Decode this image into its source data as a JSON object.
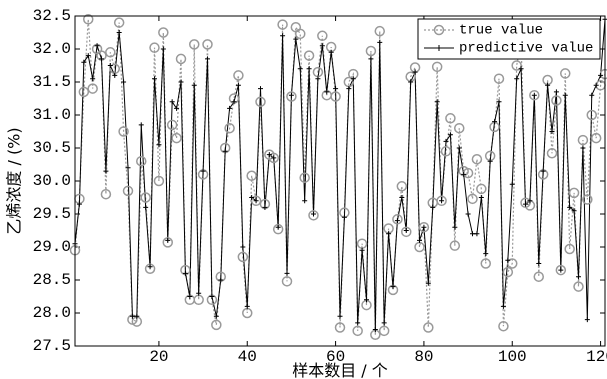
{
  "chart_data": {
    "type": "line",
    "title": "",
    "xlabel": "样本数目 / 个",
    "ylabel": "乙烯浓度 / (%)",
    "xlim": [
      1,
      121
    ],
    "ylim": [
      27.5,
      32.5
    ],
    "xtick_labels": [
      "20",
      "40",
      "60",
      "80",
      "100",
      "120"
    ],
    "ytick_labels": [
      "27.5",
      "28.0",
      "28.5",
      "29.0",
      "29.5",
      "30.0",
      "30.5",
      "31.0",
      "31.5",
      "32.0",
      "32.5"
    ],
    "grid": false,
    "legend": {
      "position": "top-right"
    },
    "x": [
      1,
      2,
      3,
      4,
      5,
      6,
      7,
      8,
      9,
      10,
      11,
      12,
      13,
      14,
      15,
      16,
      17,
      18,
      19,
      20,
      21,
      22,
      23,
      24,
      25,
      26,
      27,
      28,
      29,
      30,
      31,
      32,
      33,
      34,
      35,
      36,
      37,
      38,
      39,
      40,
      41,
      42,
      43,
      44,
      45,
      46,
      47,
      48,
      49,
      50,
      51,
      52,
      53,
      54,
      55,
      56,
      57,
      58,
      59,
      60,
      61,
      62,
      63,
      64,
      65,
      66,
      67,
      68,
      69,
      70,
      71,
      72,
      73,
      74,
      75,
      76,
      77,
      78,
      79,
      80,
      81,
      82,
      83,
      84,
      85,
      86,
      87,
      88,
      89,
      90,
      91,
      92,
      93,
      94,
      95,
      96,
      97,
      98,
      99,
      100,
      101,
      102,
      103,
      104,
      105,
      106,
      107,
      108,
      109,
      110,
      111,
      112,
      113,
      114,
      115,
      116,
      117,
      118,
      119,
      120,
      121
    ],
    "series": [
      {
        "name": "true value",
        "color": "#999999",
        "style": "dotted-circle",
        "values": [
          28.95,
          29.73,
          31.35,
          32.45,
          31.4,
          32.0,
          31.9,
          29.8,
          31.95,
          31.7,
          32.4,
          30.75,
          29.85,
          27.9,
          27.87,
          30.3,
          29.75,
          28.67,
          32.02,
          30.0,
          32.25,
          29.07,
          30.85,
          30.65,
          31.85,
          28.65,
          28.2,
          32.07,
          28.2,
          30.1,
          32.07,
          28.2,
          27.82,
          28.55,
          30.5,
          30.8,
          31.25,
          31.6,
          28.85,
          28.0,
          30.08,
          29.7,
          31.2,
          29.65,
          30.4,
          30.35,
          29.27,
          32.37,
          28.48,
          31.28,
          32.33,
          32.23,
          30.05,
          31.9,
          29.48,
          31.65,
          32.2,
          31.3,
          32.03,
          31.28,
          27.78,
          29.52,
          31.5,
          31.62,
          27.73,
          29.05,
          28.12,
          31.97,
          27.67,
          32.27,
          27.73,
          29.28,
          28.35,
          29.42,
          29.92,
          29.23,
          31.58,
          31.72,
          29.0,
          29.3,
          27.78,
          29.67,
          31.73,
          29.7,
          30.45,
          30.95,
          29.02,
          30.8,
          30.15,
          30.12,
          29.73,
          30.33,
          29.88,
          28.75,
          30.38,
          30.82,
          31.55,
          27.8,
          28.62,
          28.75,
          31.75,
          32.12,
          29.67,
          29.63,
          31.3,
          28.55,
          30.1,
          31.53,
          30.42,
          31.22,
          28.65,
          31.63,
          28.97,
          29.82,
          28.4,
          30.62,
          29.72,
          31.0,
          30.65,
          31.45,
          31.62
        ]
      },
      {
        "name": "predictive value",
        "color": "#000000",
        "style": "solid-plus",
        "values": [
          29.05,
          29.65,
          31.8,
          31.9,
          31.55,
          32.05,
          31.85,
          30.15,
          31.75,
          31.6,
          32.25,
          31.5,
          30.2,
          27.95,
          27.95,
          30.85,
          29.6,
          28.7,
          31.55,
          30.55,
          32.0,
          29.1,
          31.2,
          31.1,
          31.5,
          28.6,
          28.25,
          31.45,
          28.3,
          30.15,
          31.85,
          28.25,
          27.95,
          28.5,
          30.45,
          31.1,
          31.2,
          31.45,
          29.0,
          28.1,
          29.75,
          29.7,
          31.4,
          29.6,
          30.4,
          30.35,
          29.3,
          32.2,
          28.6,
          31.3,
          32.15,
          31.7,
          29.7,
          31.7,
          29.5,
          31.55,
          32.05,
          31.35,
          31.95,
          31.4,
          27.95,
          29.45,
          31.4,
          31.55,
          27.85,
          28.95,
          28.2,
          31.85,
          27.75,
          32.1,
          27.85,
          29.2,
          28.4,
          29.4,
          29.75,
          29.25,
          31.5,
          31.65,
          29.1,
          29.3,
          28.45,
          29.6,
          31.2,
          29.7,
          30.6,
          30.7,
          29.3,
          30.5,
          30.1,
          29.5,
          29.2,
          29.2,
          29.75,
          28.9,
          30.3,
          30.9,
          31.2,
          28.1,
          28.8,
          29.95,
          31.55,
          31.7,
          29.65,
          29.7,
          31.3,
          28.75,
          30.15,
          31.45,
          30.75,
          31.35,
          28.65,
          31.3,
          29.6,
          29.55,
          28.55,
          30.5,
          27.9,
          31.3,
          31.45,
          31.6,
          32.45
        ]
      }
    ]
  }
}
